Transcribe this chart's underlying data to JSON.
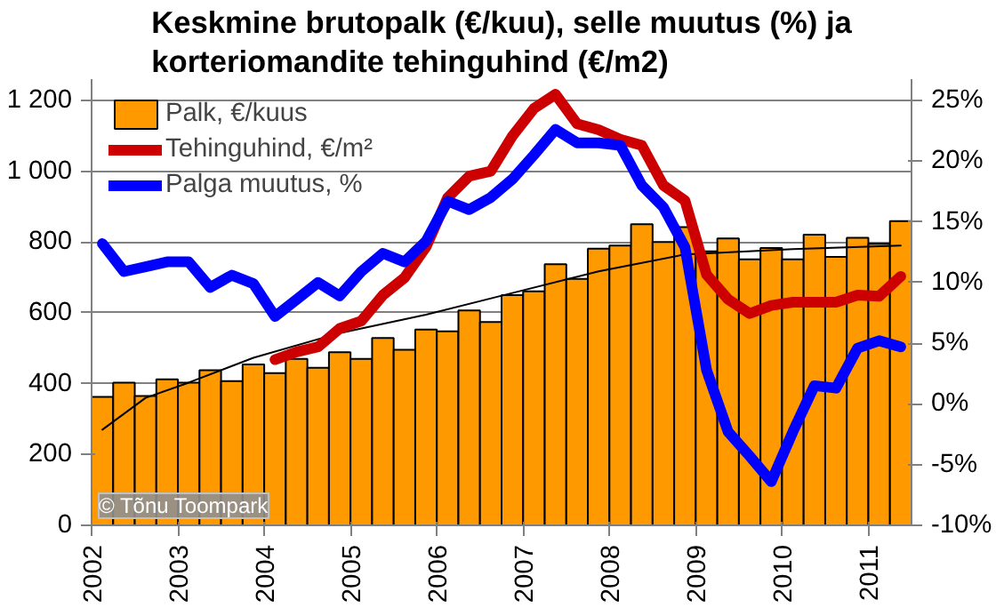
{
  "chart_data": {
    "type": "bar",
    "title": "Keskmine brutopalk (€/kuu), selle muutus (%) ja\nkorteriomandite tehinguhind (€/m2)",
    "x": [
      2002.125,
      2002.375,
      2002.625,
      2002.875,
      2003.125,
      2003.375,
      2003.625,
      2003.875,
      2004.125,
      2004.375,
      2004.625,
      2004.875,
      2005.125,
      2005.375,
      2005.625,
      2005.875,
      2006.125,
      2006.375,
      2006.625,
      2006.875,
      2007.125,
      2007.375,
      2007.625,
      2007.875,
      2008.125,
      2008.375,
      2008.625,
      2008.875,
      2009.125,
      2009.375,
      2009.625,
      2009.875,
      2010.125,
      2010.375,
      2010.625,
      2010.875,
      2011.125,
      2011.375
    ],
    "series": [
      {
        "name": "Palk, €/kuus",
        "color": "#ff9900",
        "values": [
          363,
          403,
          365,
          412,
          403,
          438,
          407,
          454,
          430,
          470,
          445,
          489,
          470,
          529,
          496,
          553,
          548,
          607,
          574,
          650,
          661,
          737,
          696,
          781,
          790,
          850,
          800,
          842,
          774,
          810,
          751,
          783,
          751,
          821,
          758,
          812,
          795,
          859
        ]
      },
      {
        "type": "line",
        "color": "#000000",
        "x": [
          2002.125,
          2002.625,
          2003.125,
          2003.875,
          2004.875,
          2005.875,
          2006.875,
          2007.875,
          2008.875,
          2010.125,
          2011.375
        ],
        "values": [
          270,
          360,
          403,
          473,
          543,
          595,
          656,
          717,
          765,
          780,
          790
        ]
      },
      {
        "type": "line",
        "name": "Tehinguhind, €/m²",
        "color": "#cc0000",
        "values": [
          null,
          null,
          null,
          null,
          null,
          null,
          null,
          null,
          468,
          490,
          504,
          556,
          577,
          650,
          699,
          786,
          925,
          986,
          1000,
          1099,
          1177,
          1217,
          1134,
          1117,
          1090,
          1073,
          960,
          917,
          708,
          638,
          598,
          621,
          630,
          630,
          630,
          650,
          647,
          703
        ]
      },
      {
        "type": "line",
        "name": "Palga muutus, %",
        "color": "#0000ff",
        "axis": "y2",
        "values": [
          13.2,
          10.9,
          11.3,
          11.7,
          11.7,
          9.6,
          10.6,
          9.9,
          7.2,
          8.6,
          10.0,
          8.9,
          10.9,
          12.4,
          11.7,
          13.4,
          16.7,
          16.0,
          17.0,
          18.5,
          20.5,
          22.6,
          21.5,
          21.5,
          21.3,
          18.0,
          16.2,
          12.9,
          2.8,
          -2.3,
          -4.3,
          -6.4,
          -2.3,
          1.5,
          1.3,
          4.6,
          5.2,
          4.7
        ]
      }
    ],
    "xlim": [
      2002,
      2011.5
    ],
    "xticks": [
      2002,
      2003,
      2004,
      2005,
      2006,
      2007,
      2008,
      2009,
      2010,
      2011
    ],
    "ylim": [
      0,
      1260
    ],
    "yticks": [
      0,
      200,
      400,
      600,
      800,
      {
        "value": 1000,
        "label": "1 000"
      },
      {
        "value": 1200,
        "label": "1 200"
      }
    ],
    "y2lim": [
      -10,
      26.75
    ],
    "y2ticks": [
      {
        "value": -10,
        "label": "-10%"
      },
      {
        "value": -5,
        "label": "-5%"
      },
      {
        "value": 0,
        "label": "0%"
      },
      {
        "value": 5,
        "label": "5%"
      },
      {
        "value": 10,
        "label": "10%"
      },
      {
        "value": 15,
        "label": "15%"
      },
      {
        "value": 20,
        "label": "20%"
      },
      {
        "value": 25,
        "label": "25%"
      }
    ],
    "grid": "y",
    "legend": "top left",
    "annotations": [
      "© Tõnu Toompark"
    ]
  }
}
